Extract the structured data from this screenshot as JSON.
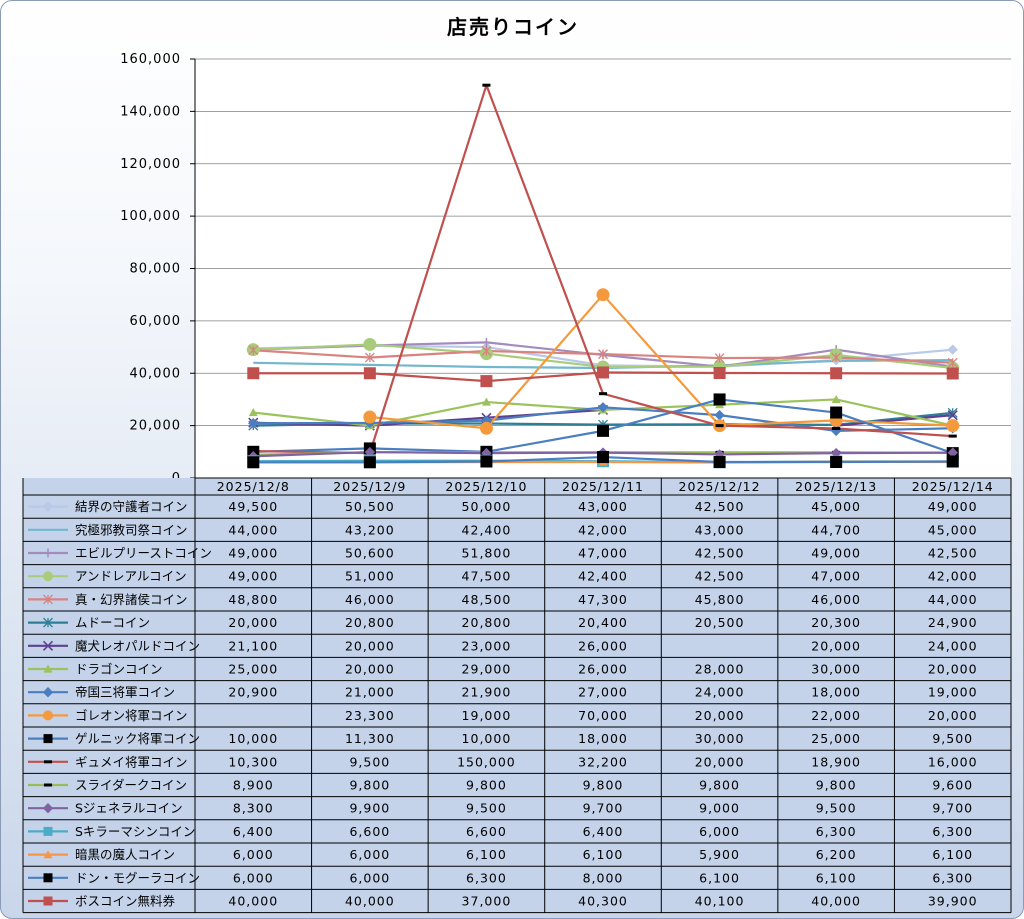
{
  "chart_data": {
    "type": "line",
    "title": "店売りコイン",
    "categories": [
      "2025/12/8",
      "2025/12/9",
      "2025/12/10",
      "2025/12/11",
      "2025/12/12",
      "2025/12/13",
      "2025/12/14"
    ],
    "ylim": [
      0,
      160000
    ],
    "yticks": [
      "0",
      "20,000",
      "40,000",
      "60,000",
      "80,000",
      "100,000",
      "120,000",
      "140,000",
      "160,000"
    ],
    "grid": true,
    "legend": "data-table",
    "series": [
      {
        "name": "結界の守護者コイン",
        "color": "#b9c9e8",
        "marker": "diamond",
        "values": [
          49500,
          50500,
          50000,
          43000,
          42500,
          45000,
          49000
        ],
        "labels": [
          "49,500",
          "50,500",
          "50,000",
          "43,000",
          "42,500",
          "45,000",
          "49,000"
        ]
      },
      {
        "name": "究極邪教司祭コイン",
        "color": "#72b6cf",
        "marker": "none",
        "values": [
          44000,
          43200,
          42400,
          42000,
          43000,
          44700,
          45000
        ],
        "labels": [
          "44,000",
          "43,200",
          "42,400",
          "42,000",
          "43,000",
          "44,700",
          "45,000"
        ]
      },
      {
        "name": "エビルプリーストコイン",
        "color": "#a38bbe",
        "marker": "plus",
        "values": [
          49000,
          50600,
          51800,
          47000,
          42500,
          49000,
          42500
        ],
        "labels": [
          "49,000",
          "50,600",
          "51,800",
          "47,000",
          "42,500",
          "49,000",
          "42,500"
        ]
      },
      {
        "name": "アンドレアルコイン",
        "color": "#a8cd7a",
        "marker": "circle",
        "values": [
          49000,
          51000,
          47500,
          42400,
          42500,
          47000,
          42000
        ],
        "labels": [
          "49,000",
          "51,000",
          "47,500",
          "42,400",
          "42,500",
          "47,000",
          "42,000"
        ]
      },
      {
        "name": "真・幻界諸侯コイン",
        "color": "#d9827f",
        "marker": "asterisk",
        "values": [
          48800,
          46000,
          48500,
          47300,
          45800,
          46000,
          44000
        ],
        "labels": [
          "48,800",
          "46,000",
          "48,500",
          "47,300",
          "45,800",
          "46,000",
          "44,000"
        ]
      },
      {
        "name": "ムドーコイン",
        "color": "#2e7f96",
        "marker": "asterisk",
        "values": [
          20000,
          20800,
          20800,
          20400,
          20500,
          20300,
          24900
        ],
        "labels": [
          "20,000",
          "20,800",
          "20,800",
          "20,400",
          "20,500",
          "20,300",
          "24,900"
        ]
      },
      {
        "name": "魔犬レオパルドコイン",
        "color": "#5f3f8f",
        "marker": "x",
        "values": [
          21100,
          20000,
          23000,
          26000,
          null,
          20000,
          24000
        ],
        "labels": [
          "21,100",
          "20,000",
          "23,000",
          "26,000",
          "",
          "20,000",
          "24,000"
        ]
      },
      {
        "name": "ドラゴンコイン",
        "color": "#9bc35c",
        "marker": "triangle",
        "values": [
          25000,
          20000,
          29000,
          26000,
          28000,
          30000,
          20000
        ],
        "labels": [
          "25,000",
          "20,000",
          "29,000",
          "26,000",
          "28,000",
          "30,000",
          "20,000"
        ]
      },
      {
        "name": "帝国三将軍コイン",
        "color": "#4a7ec0",
        "marker": "diamond",
        "values": [
          20900,
          21000,
          21900,
          27000,
          24000,
          18000,
          19000
        ],
        "labels": [
          "20,900",
          "21,000",
          "21,900",
          "27,000",
          "24,000",
          "18,000",
          "19,000"
        ]
      },
      {
        "name": "ゴレオン将軍コイン",
        "color": "#f59a3c",
        "marker": "circle",
        "values": [
          null,
          23300,
          19000,
          70000,
          20000,
          22000,
          20000
        ],
        "labels": [
          "",
          "23,300",
          "19,000",
          "70,000",
          "20,000",
          "22,000",
          "20,000"
        ]
      },
      {
        "name": "ゲルニック将軍コイン",
        "color": "#4a7ec0",
        "marker": "square-black",
        "values": [
          10000,
          11300,
          10000,
          18000,
          30000,
          25000,
          9500
        ],
        "labels": [
          "10,000",
          "11,300",
          "10,000",
          "18,000",
          "30,000",
          "25,000",
          "9,500"
        ]
      },
      {
        "name": "ギュメイ将軍コイン",
        "color": "#c0504d",
        "marker": "dash-black",
        "values": [
          10300,
          9500,
          150000,
          32200,
          20000,
          18900,
          16000
        ],
        "labels": [
          "10,300",
          "9,500",
          "150,000",
          "32,200",
          "20,000",
          "18,900",
          "16,000"
        ]
      },
      {
        "name": "スライダークコイン",
        "color": "#9bbb59",
        "marker": "dash-black",
        "values": [
          8900,
          9800,
          9800,
          9800,
          9800,
          9800,
          9600
        ],
        "labels": [
          "8,900",
          "9,800",
          "9,800",
          "9,800",
          "9,800",
          "9,800",
          "9,600"
        ]
      },
      {
        "name": "Sジェネラルコイン",
        "color": "#8064a2",
        "marker": "diamond",
        "values": [
          8300,
          9900,
          9500,
          9700,
          9000,
          9500,
          9700
        ],
        "labels": [
          "8,300",
          "9,900",
          "9,500",
          "9,700",
          "9,000",
          "9,500",
          "9,700"
        ]
      },
      {
        "name": "Sキラーマシンコイン",
        "color": "#4bacc6",
        "marker": "square",
        "values": [
          6400,
          6600,
          6600,
          6400,
          6000,
          6300,
          6300
        ],
        "labels": [
          "6,400",
          "6,600",
          "6,600",
          "6,400",
          "6,000",
          "6,300",
          "6,300"
        ]
      },
      {
        "name": "暗黒の魔人コイン",
        "color": "#f79646",
        "marker": "triangle",
        "values": [
          6000,
          6000,
          6100,
          6100,
          5900,
          6200,
          6100
        ],
        "labels": [
          "6,000",
          "6,000",
          "6,100",
          "6,100",
          "5,900",
          "6,200",
          "6,100"
        ]
      },
      {
        "name": "ドン・モグーラコイン",
        "color": "#4a7ec0",
        "marker": "square-black",
        "values": [
          6000,
          6000,
          6300,
          8000,
          6100,
          6100,
          6300
        ],
        "labels": [
          "6,000",
          "6,000",
          "6,300",
          "8,000",
          "6,100",
          "6,100",
          "6,300"
        ]
      },
      {
        "name": "ボスコイン無料券",
        "color": "#c0504d",
        "marker": "square",
        "values": [
          40000,
          40000,
          37000,
          40300,
          40100,
          40000,
          39900
        ],
        "labels": [
          "40,000",
          "40,000",
          "37,000",
          "40,300",
          "40,100",
          "40,000",
          "39,900"
        ]
      }
    ]
  }
}
